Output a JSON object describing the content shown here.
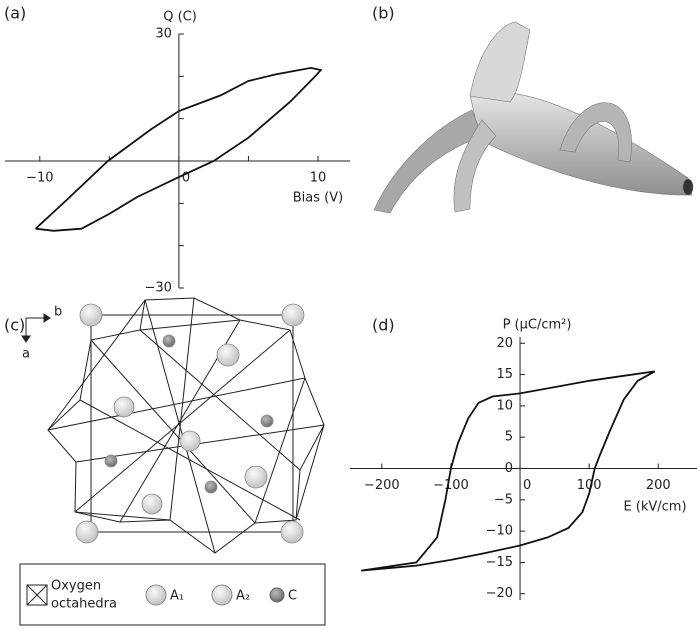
{
  "panels": [
    {
      "label": "(a)"
    },
    {
      "label": "(b)"
    },
    {
      "label": "(c)"
    },
    {
      "label": "(d)"
    }
  ],
  "chart_data": [
    {
      "type": "line",
      "xlabel": "Bias (V)",
      "ylabel": "Q (C)",
      "xlim": [
        -12.5,
        12.3
      ],
      "ylim": [
        -30,
        30
      ],
      "xticks": [
        {
          "value": -10,
          "label": "−10"
        },
        0,
        10
      ],
      "xminor": [
        -5,
        5
      ],
      "yticks": [
        {
          "value": -30,
          "label": "−30"
        },
        30
      ],
      "yminor": [
        -20,
        -10,
        10,
        20
      ],
      "x": [
        -10.3,
        -8,
        -5.1,
        -2,
        0,
        3,
        5,
        7,
        9.5,
        10.2,
        9.8,
        8,
        5,
        2.5,
        0,
        -3,
        -5,
        -7,
        -9,
        -10.3
      ],
      "series": [
        {
          "color": "#111111",
          "values": [
            -16,
            -9,
            0,
            7.5,
            11.8,
            15.5,
            18.9,
            20.5,
            22,
            21.5,
            20,
            14,
            5.5,
            0,
            -3.8,
            -8.5,
            -12.5,
            -16,
            -16.5,
            -16
          ]
        }
      ]
    },
    {
      "type": "line",
      "xlabel": "E (kV/cm)",
      "ylabel": "P (μC/cm²)",
      "xlim": [
        -246,
        256
      ],
      "ylim": [
        -21,
        21
      ],
      "xticks": [
        {
          "value": -200,
          "label": "−200"
        },
        {
          "value": -100,
          "label": "−100"
        },
        0,
        100,
        200
      ],
      "xminor": [],
      "yticks": [
        {
          "value": -20,
          "label": "−20"
        },
        {
          "value": -15,
          "label": "−15"
        },
        {
          "value": -10,
          "label": "−10"
        },
        {
          "value": -5,
          "label": "−5"
        },
        0,
        5,
        10,
        15,
        20
      ],
      "yminor": [],
      "x": [
        -230,
        -150,
        -120,
        -108,
        -100,
        -90,
        -75,
        -60,
        -40,
        0,
        50,
        100,
        150,
        195,
        170,
        150,
        130,
        115,
        108,
        100,
        90,
        70,
        40,
        0,
        -50,
        -100,
        -150,
        -230
      ],
      "series": [
        {
          "color": "#111111",
          "values": [
            -16.3,
            -15,
            -11,
            -5,
            0,
            4,
            8,
            10.5,
            11.5,
            12,
            13,
            14,
            14.8,
            15.5,
            14,
            11,
            6,
            2,
            0,
            -4,
            -7,
            -9.5,
            -11,
            -12.3,
            -13.5,
            -14.6,
            -15.5,
            -16.3
          ]
        }
      ]
    }
  ],
  "crystal": {
    "axis_b": "b",
    "axis_a": "a",
    "legend": {
      "octahedra": [
        "Oxygen",
        "octahedra"
      ],
      "a1": "A₁",
      "a2": "A₂",
      "c": "C"
    }
  }
}
